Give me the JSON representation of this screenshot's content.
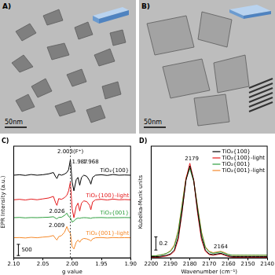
{
  "images": [
    {
      "label": "A)",
      "scale_bar": "50nm"
    },
    {
      "label": "B)",
      "scale_bar": "50nm"
    }
  ],
  "chart_data": [
    {
      "type": "line",
      "title": "C)",
      "xlabel": "g value",
      "ylabel": "EPR Intensity (a.u.)",
      "x": [
        2.1,
        2.09,
        2.08,
        2.07,
        2.06,
        2.05,
        2.04,
        2.032,
        2.028,
        2.026,
        2.023,
        2.018,
        2.013,
        2.009,
        2.006,
        2.003,
        2,
        1.997,
        1.993,
        1.99,
        1.987,
        1.984,
        1.98,
        1.975,
        1.97,
        1.968,
        1.965,
        1.96,
        1.95,
        1.94,
        1.93,
        1.92,
        1.91,
        1.9
      ],
      "series": [
        {
          "name": "TiO₂{100}",
          "color": "#000000",
          "values": [
            0,
            20,
            -10,
            30,
            0,
            20,
            60,
            120,
            -80,
            -150,
            40,
            0,
            50,
            120,
            250,
            700,
            -300,
            -700,
            -200,
            -100,
            -450,
            -100,
            0,
            -50,
            -250,
            -400,
            -100,
            0,
            20,
            -10,
            30,
            0,
            10,
            0
          ]
        },
        {
          "name": "TiO₂{100}-light",
          "color": "#e41a1c",
          "values": [
            -1100,
            -1080,
            -1110,
            -1070,
            -1100,
            -1060,
            -1020,
            -950,
            -1250,
            -1350,
            -1050,
            -1080,
            -1000,
            -900,
            -700,
            -300,
            -1500,
            -1900,
            -1400,
            -1250,
            -1600,
            -1250,
            -1150,
            -1180,
            -1350,
            -1550,
            -1200,
            -1100,
            -1080,
            -1110,
            -1070,
            -1100,
            -1090,
            -1100
          ]
        },
        {
          "name": "TiO₂{001}",
          "color": "#2e9e3e",
          "values": [
            -1900,
            -1890,
            -1910,
            -1895,
            -1900,
            -1890,
            -1880,
            -1860,
            -1930,
            -1950,
            -1890,
            -1880,
            -1800,
            -1700,
            -1850,
            -1900,
            -2100,
            -2050,
            -1950,
            -1920,
            -1930,
            -1910,
            -1900,
            -1905,
            -1920,
            -1930,
            -1905,
            -1900,
            -1895,
            -1905,
            -1900,
            -1900,
            -1895,
            -1900
          ]
        },
        {
          "name": "TiO₂{001}-light",
          "color": "#f5892a",
          "values": [
            -2800,
            -2790,
            -2810,
            -2780,
            -2800,
            -2770,
            -2750,
            -2700,
            -2850,
            -2900,
            -2750,
            -2700,
            -2550,
            -2300,
            -2500,
            -2600,
            -3200,
            -3300,
            -3000,
            -2900,
            -3000,
            -2880,
            -2830,
            -2850,
            -2900,
            -2950,
            -2850,
            -2800,
            -2790,
            -2810,
            -2790,
            -2800,
            -2795,
            -2800
          ]
        }
      ],
      "xlim": [
        2.1,
        1.9
      ],
      "xticks": [
        {
          "value": 2.1,
          "label": "2.10"
        },
        2.05,
        {
          "value": 2,
          "label": "2.00"
        },
        1.95,
        {
          "value": 1.9,
          "label": "1.90"
        }
      ],
      "ylim": [
        -3700,
        1300
      ],
      "tick_labels": "x",
      "grid": false,
      "reference_line": 2.003,
      "scale_bar": 500,
      "annotations": [
        {
          "text": "2.003(F⁺)",
          "x": 2.003
        },
        {
          "text": "1.987",
          "x": 1.987
        },
        {
          "text": "1.968",
          "x": 1.968
        },
        {
          "text": "2.026",
          "x": 2.026
        },
        {
          "text": "2.009",
          "x": 2.009
        }
      ]
    },
    {
      "type": "line",
      "title": "D)",
      "xlabel": "Wavenumber (cm⁻¹)",
      "ylabel": "Kubelka-Munk units",
      "x": [
        2200,
        2198,
        2196,
        2194,
        2192,
        2190,
        2188,
        2186,
        2184,
        2182,
        2180,
        2178,
        2176,
        2174,
        2172,
        2170,
        2168,
        2166,
        2164,
        2162,
        2160,
        2158,
        2156,
        2154,
        2152,
        2150,
        2148,
        2146,
        2144,
        2142,
        2140
      ],
      "series": [
        {
          "name": "TiO₂{100}",
          "color": "#000000",
          "values": [
            0.02,
            0.02,
            0.02,
            0.03,
            0.04,
            0.06,
            0.12,
            0.32,
            0.72,
            1.18,
            1.4,
            1.18,
            0.72,
            0.32,
            0.12,
            0.06,
            0.05,
            0.06,
            0.07,
            0.05,
            0.03,
            0.02,
            0.02,
            0.02,
            0.02,
            0.02,
            0.02,
            0.02,
            0.02,
            0.02,
            0.02
          ]
        },
        {
          "name": "TiO₂{100}-light",
          "color": "#e41a1c",
          "values": [
            0.01,
            0.01,
            0.01,
            0.02,
            0.03,
            0.05,
            0.1,
            0.28,
            0.7,
            1.2,
            1.44,
            1.18,
            0.68,
            0.28,
            0.1,
            0.05,
            0.04,
            0.05,
            0.06,
            0.04,
            0.02,
            0.01,
            0.01,
            0.01,
            0.01,
            0.01,
            0.01,
            0.01,
            0.01,
            0.01,
            0.01
          ]
        },
        {
          "name": "TiO₂{001}",
          "color": "#2e9e3e",
          "values": [
            0.03,
            0.03,
            0.04,
            0.05,
            0.07,
            0.1,
            0.18,
            0.4,
            0.8,
            1.2,
            1.36,
            1.16,
            0.76,
            0.38,
            0.16,
            0.09,
            0.07,
            0.08,
            0.09,
            0.07,
            0.05,
            0.04,
            0.04,
            0.04,
            0.04,
            0.04,
            0.04,
            0.04,
            0.04,
            0.04,
            0.04
          ]
        },
        {
          "name": "TiO₂{001}-light",
          "color": "#f5892a",
          "values": [
            0.03,
            0.03,
            0.04,
            0.05,
            0.07,
            0.11,
            0.2,
            0.42,
            0.82,
            1.22,
            1.38,
            1.18,
            0.78,
            0.4,
            0.17,
            0.1,
            0.08,
            0.09,
            0.1,
            0.08,
            0.05,
            0.04,
            0.04,
            0.04,
            0.04,
            0.04,
            0.04,
            0.04,
            0.04,
            0.04,
            0.04
          ]
        }
      ],
      "xlim": [
        2200,
        2140
      ],
      "xticks": [
        2200,
        2190,
        2180,
        2170,
        2160,
        2150,
        2140
      ],
      "ylim": [
        0,
        1.7
      ],
      "tick_labels": "x",
      "grid": false,
      "legend": "top right",
      "scale_bar": 0.2,
      "annotations": [
        {
          "text": "2179",
          "x": 2179
        },
        {
          "text": "2164",
          "x": 2164
        }
      ]
    }
  ]
}
